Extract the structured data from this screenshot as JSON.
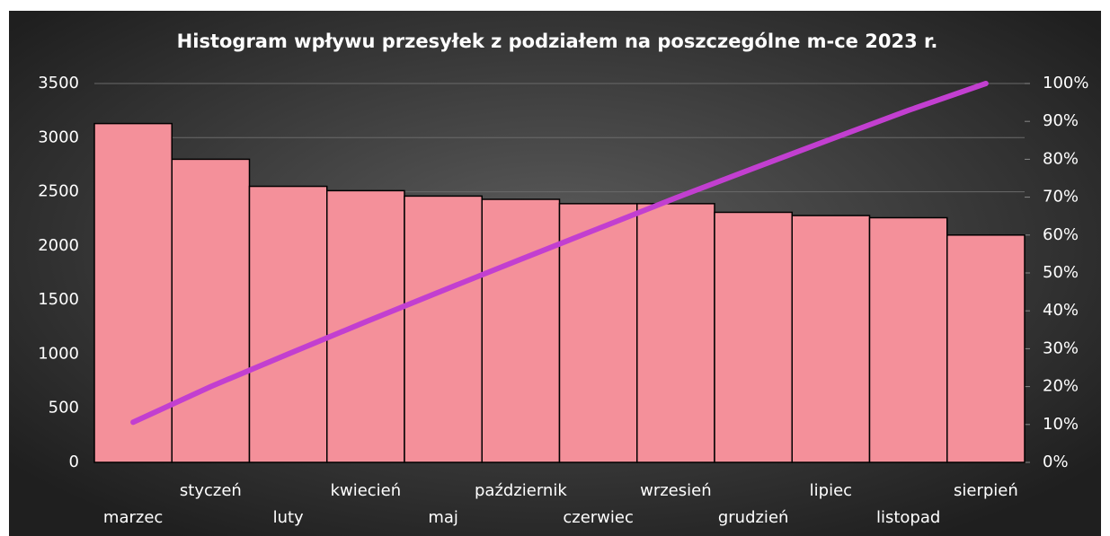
{
  "chart_data": {
    "type": "pareto",
    "title": "Histogram wpływu przesyłek z podziałem na poszczególne m-ce 2023 r.",
    "categories": [
      "marzec",
      "styczeń",
      "luty",
      "kwiecień",
      "maj",
      "październik",
      "czerwiec",
      "wrzesień",
      "grudzień",
      "lipiec",
      "listopad",
      "sierpień"
    ],
    "series": [
      {
        "type": "bar",
        "color": "#f4909a",
        "values": [
          3130,
          2800,
          2550,
          2510,
          2460,
          2430,
          2390,
          2390,
          2310,
          2280,
          2260,
          2100
        ]
      },
      {
        "type": "line",
        "axis": "y2",
        "color": "#c23fd0",
        "values": [
          10.6,
          20.0,
          28.6,
          37.1,
          45.4,
          53.6,
          61.7,
          69.8,
          77.6,
          85.3,
          92.9,
          100
        ]
      }
    ],
    "ylim": [
      0,
      3500
    ],
    "yticks": [
      0,
      500,
      1000,
      1500,
      2000,
      2500,
      3000,
      3500
    ],
    "y2lim": [
      0,
      100
    ],
    "y2ticks": [
      {
        "value": 0,
        "label": "0%"
      },
      {
        "value": 10,
        "label": "10%"
      },
      {
        "value": 20,
        "label": "20%"
      },
      {
        "value": 30,
        "label": "30%"
      },
      {
        "value": 40,
        "label": "40%"
      },
      {
        "value": 50,
        "label": "50%"
      },
      {
        "value": 60,
        "label": "60%"
      },
      {
        "value": 70,
        "label": "70%"
      },
      {
        "value": 80,
        "label": "80%"
      },
      {
        "value": 90,
        "label": "90%"
      },
      {
        "value": 100,
        "label": "100%"
      }
    ],
    "grid": true
  }
}
